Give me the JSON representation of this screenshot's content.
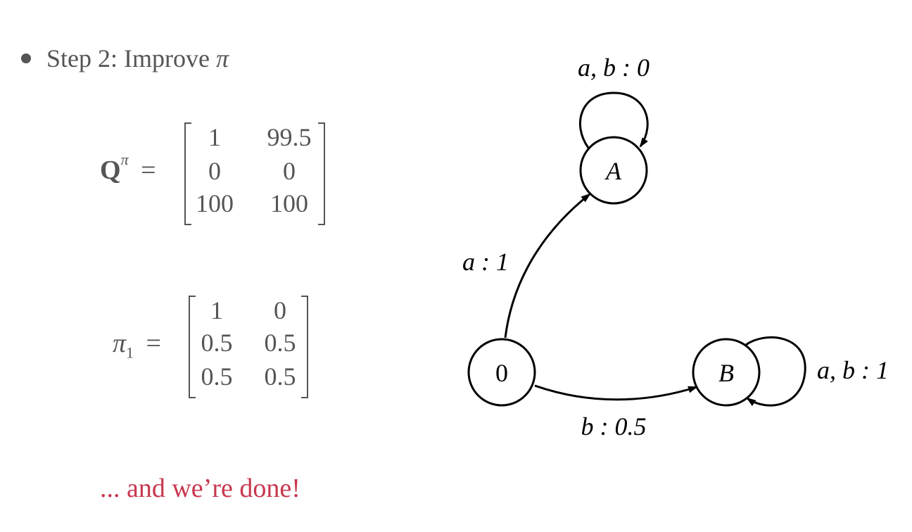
{
  "slide": {
    "bullet": {
      "step_text": "Step 2: Improve ",
      "pi_symbol": "π"
    },
    "q_matrix": {
      "lhs_symbol": "Q",
      "lhs_superscript": "π",
      "equals": "=",
      "rows": [
        [
          "1",
          "99.5"
        ],
        [
          "0",
          "0"
        ],
        [
          "100",
          "100"
        ]
      ]
    },
    "pi_matrix": {
      "lhs_symbol": "π",
      "lhs_subscript": "1",
      "equals": "=",
      "rows": [
        [
          "1",
          "0"
        ],
        [
          "0.5",
          "0.5"
        ],
        [
          "0.5",
          "0.5"
        ]
      ]
    },
    "done_text": "... and we’re done!",
    "done_color": "#c8374f"
  },
  "diagram": {
    "nodes": [
      {
        "id": "0",
        "label": "0"
      },
      {
        "id": "A",
        "label": "A"
      },
      {
        "id": "B",
        "label": "B"
      }
    ],
    "edges": [
      {
        "from": "0",
        "to": "A",
        "label": "a : 1"
      },
      {
        "from": "0",
        "to": "B",
        "label": "b : 0.5"
      },
      {
        "from": "A",
        "to": "A",
        "label": "a, b : 0"
      },
      {
        "from": "B",
        "to": "B",
        "label": "a, b : 1"
      }
    ]
  }
}
